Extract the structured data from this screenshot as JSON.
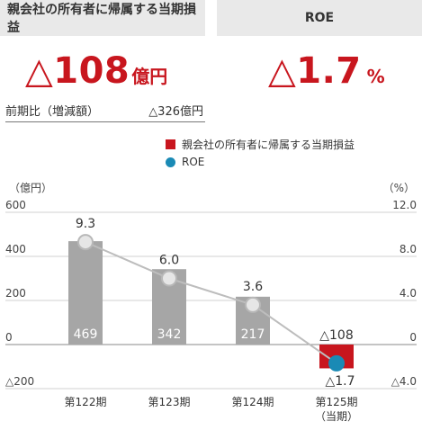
{
  "header": {
    "left_title": "親会社の所有者に帰属する当期損益",
    "right_title": "ROE"
  },
  "kpi": {
    "profit_value": "△108",
    "profit_unit": "億円",
    "roe_value": "△1.7",
    "roe_unit": "%",
    "compare_label": "前期比（増減額）",
    "compare_value": "△326億円"
  },
  "colors": {
    "bar_gray": "#a6a6a6",
    "bar_red": "#c8161e",
    "roe_dot": "#1a8ab5",
    "roe_line": "#bdbdbd",
    "accent": "#c8161e"
  },
  "chart_data": {
    "type": "bar",
    "categories": [
      "第122期",
      "第123期",
      "第124期",
      "第125期"
    ],
    "category_sub": [
      "",
      "",
      "",
      "（当期）"
    ],
    "left_axis": {
      "unit_label": "（億円）",
      "ylim": [
        -200,
        600
      ],
      "ticks": [
        600,
        400,
        200,
        0,
        -200
      ],
      "tick_labels": [
        "600",
        "400",
        "200",
        "0",
        "△200"
      ]
    },
    "right_axis": {
      "unit_label": "（%）",
      "ylim": [
        -4,
        12
      ],
      "ticks": [
        12,
        8,
        4,
        0,
        -4
      ],
      "tick_labels": [
        "12.0",
        "8.0",
        "4.0",
        "0",
        "△4.0"
      ]
    },
    "series": [
      {
        "name": "親会社の所有者に帰属する当期損益",
        "type": "bar",
        "axis": "left",
        "values": [
          469,
          342,
          217,
          -108
        ],
        "labels": [
          "469",
          "342",
          "217",
          "△108"
        ]
      },
      {
        "name": "ROE",
        "type": "line",
        "axis": "right",
        "values": [
          9.3,
          6.0,
          3.6,
          -1.7
        ],
        "labels": [
          "9.3",
          "6.0",
          "3.6",
          "△1.7"
        ]
      }
    ],
    "grid": true,
    "legend_position": "top-right"
  }
}
